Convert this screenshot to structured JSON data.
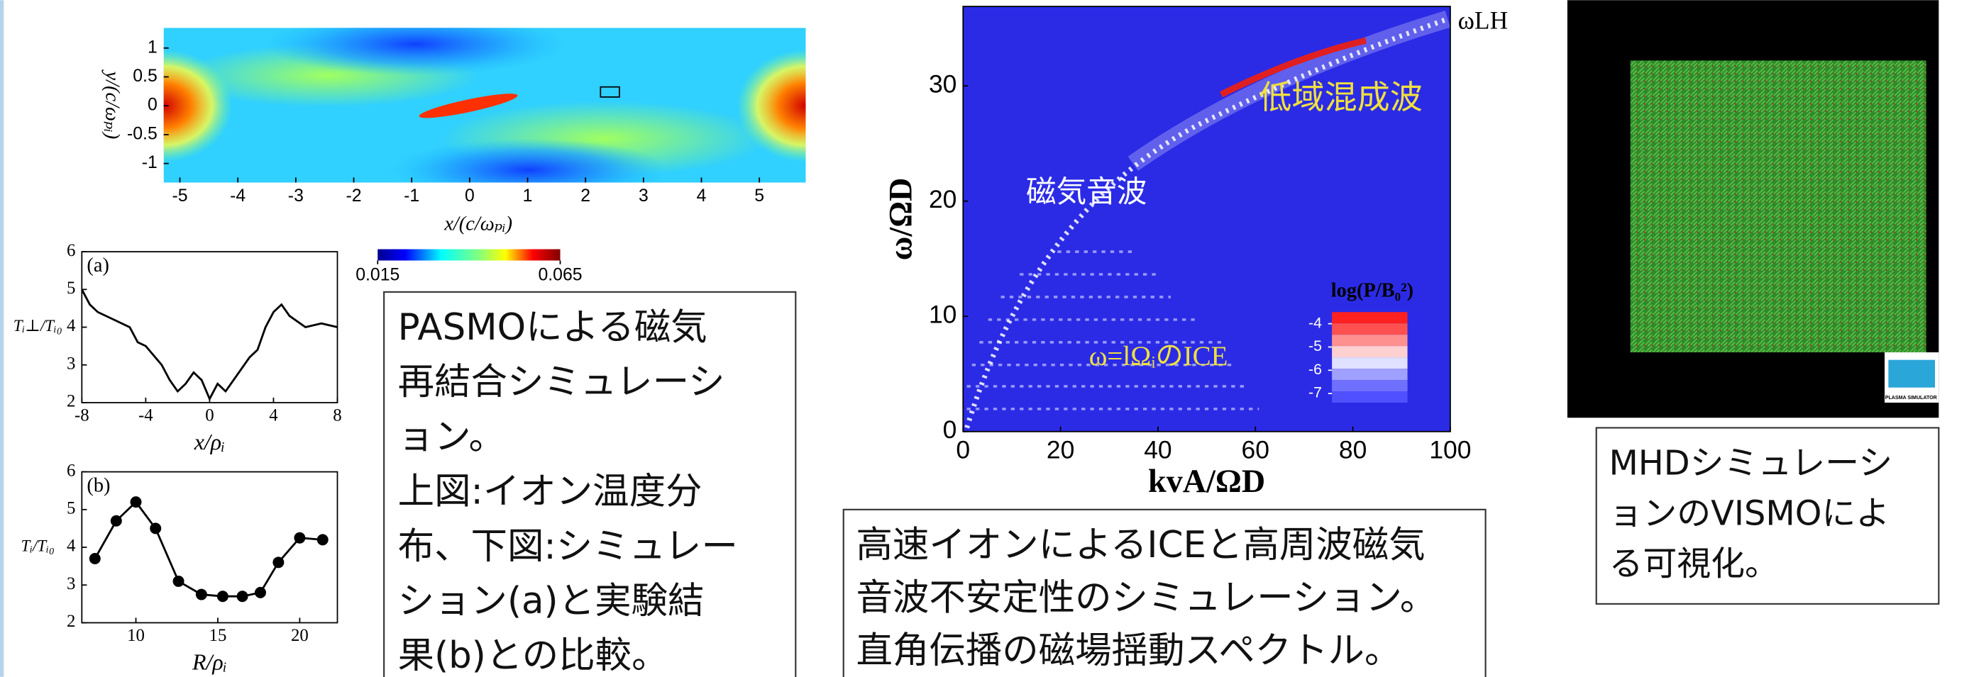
{
  "chart_data": [
    {
      "type": "heatmap",
      "xlabel": "x/(c/ωₚᵢ)",
      "ylabel": "y/(c/ωₚᵢ)",
      "xlim": [
        -5.28,
        5.8
      ],
      "xticks": [
        -5,
        -4,
        -3,
        -2,
        -1,
        0,
        1,
        2,
        3,
        4,
        5
      ],
      "ylim": [
        -1.33,
        1.35
      ],
      "yticks": [
        -1,
        -0.5,
        0,
        0.5,
        1
      ],
      "colorbar": {
        "lim": [
          0.015,
          0.065
        ],
        "ticks": [
          0.015,
          0.065
        ]
      }
    },
    {
      "type": "line",
      "label": "(a)",
      "xlabel": "x/ρᵢ",
      "ylabel": "Tᵢ⊥/Tᵢ₀",
      "color": "#000000",
      "x": [
        -8,
        -7.5,
        -7,
        -6,
        -5,
        -4.5,
        -4,
        -3,
        -2.5,
        -2,
        -1.5,
        -1,
        -0.5,
        0,
        0.5,
        1,
        1.5,
        2,
        2.5,
        3,
        3.5,
        4,
        4.5,
        5,
        6,
        7,
        8
      ],
      "values": [
        5.0,
        4.6,
        4.4,
        4.2,
        4.0,
        3.6,
        3.5,
        3.0,
        2.6,
        2.3,
        2.5,
        2.8,
        2.6,
        2.1,
        2.5,
        2.3,
        2.6,
        2.9,
        3.2,
        3.4,
        4.0,
        4.4,
        4.6,
        4.3,
        4.0,
        4.1,
        4.0
      ],
      "xlim": [
        -8,
        8
      ],
      "xticks": [
        -8,
        -4,
        0,
        4,
        8
      ],
      "ylim": [
        2,
        6
      ],
      "yticks": [
        2,
        3,
        4,
        5,
        6
      ]
    },
    {
      "type": "line",
      "markers": true,
      "label": "(b)",
      "xlabel": "R/ρᵢ",
      "ylabel": "Tᵢ/Tᵢ₀",
      "color": "#000000",
      "x": [
        7.5,
        8.8,
        10,
        11.2,
        12.6,
        14,
        15.3,
        16.5,
        17.6,
        18.7,
        20,
        21.4
      ],
      "values": [
        3.7,
        4.7,
        5.2,
        4.5,
        3.1,
        2.75,
        2.7,
        2.7,
        2.8,
        3.6,
        4.25,
        4.2
      ],
      "xlim": [
        6.7,
        22.3
      ],
      "xticks": [
        10,
        15,
        20
      ],
      "ylim": [
        2,
        6
      ],
      "yticks": [
        2,
        3,
        4,
        5,
        6
      ]
    },
    {
      "type": "spectrum",
      "xlabel": "kvA/ΩD",
      "ylabel": "ω/ΩD",
      "annotations": [
        "ωLH",
        "低域混成波",
        "磁気音波",
        "ω=lΩᵢのICE"
      ],
      "xlim": [
        0,
        100
      ],
      "xticks": [
        0,
        20,
        40,
        60,
        80,
        100
      ],
      "ylim": [
        0,
        36.9
      ],
      "yticks": [
        0,
        10,
        20,
        30
      ],
      "colorbar": {
        "label": "log(P/B₀²)",
        "lim": [
          -3.5,
          -7.5
        ],
        "ticks": [
          -4,
          -5,
          -6,
          -7
        ]
      }
    }
  ],
  "image": {
    "logo_text": "PLASMA SIMULATOR"
  },
  "captions": [
    [
      "PASMOによる磁気",
      "再結合シミュレーシ",
      "ョン。",
      "上図:イオン温度分",
      "布、下図:シミュレー",
      "ション(a)と実験結",
      "果(b)との比較。"
    ],
    [
      "高速イオンによるICEと高周波磁気",
      "音波不安定性のシミュレーション。",
      "直角伝播の磁場揺動スペクトル。"
    ],
    [
      "MHDシミュレーシ",
      "ョンのVISMOによ",
      "る可視化。"
    ]
  ]
}
